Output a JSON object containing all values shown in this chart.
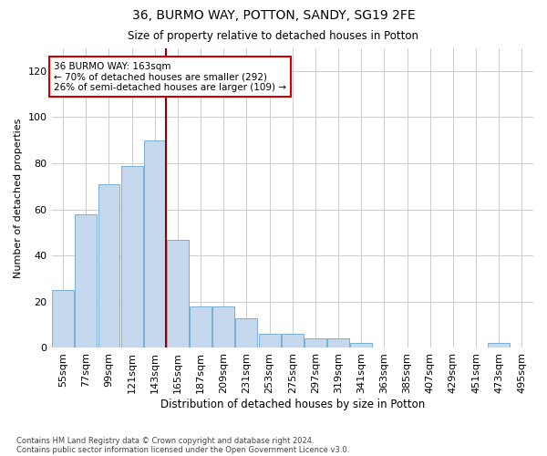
{
  "title": "36, BURMO WAY, POTTON, SANDY, SG19 2FE",
  "subtitle": "Size of property relative to detached houses in Potton",
  "xlabel": "Distribution of detached houses by size in Potton",
  "ylabel": "Number of detached properties",
  "bar_color": "#c5d8ee",
  "bar_edge_color": "#7aafd4",
  "vline_color": "#8b0000",
  "annotation_line1": "36 BURMO WAY: 163sqm",
  "annotation_line2": "← 70% of detached houses are smaller (292)",
  "annotation_line3": "26% of semi-detached houses are larger (109) →",
  "annotation_box_color": "#ffffff",
  "annotation_box_edge": "#cc0000",
  "categories": [
    "55sqm",
    "77sqm",
    "99sqm",
    "121sqm",
    "143sqm",
    "165sqm",
    "187sqm",
    "209sqm",
    "231sqm",
    "253sqm",
    "275sqm",
    "297sqm",
    "319sqm",
    "341sqm",
    "363sqm",
    "385sqm",
    "407sqm",
    "429sqm",
    "451sqm",
    "473sqm",
    "495sqm"
  ],
  "values": [
    25,
    58,
    71,
    79,
    90,
    47,
    18,
    18,
    13,
    6,
    6,
    4,
    4,
    2,
    0,
    0,
    0,
    0,
    0,
    2,
    0
  ],
  "ylim": [
    0,
    130
  ],
  "yticks": [
    0,
    20,
    40,
    60,
    80,
    100,
    120
  ],
  "footer_line1": "Contains HM Land Registry data © Crown copyright and database right 2024.",
  "footer_line2": "Contains public sector information licensed under the Open Government Licence v3.0.",
  "background_color": "#ffffff",
  "grid_color": "#cccccc",
  "vline_index": 5
}
